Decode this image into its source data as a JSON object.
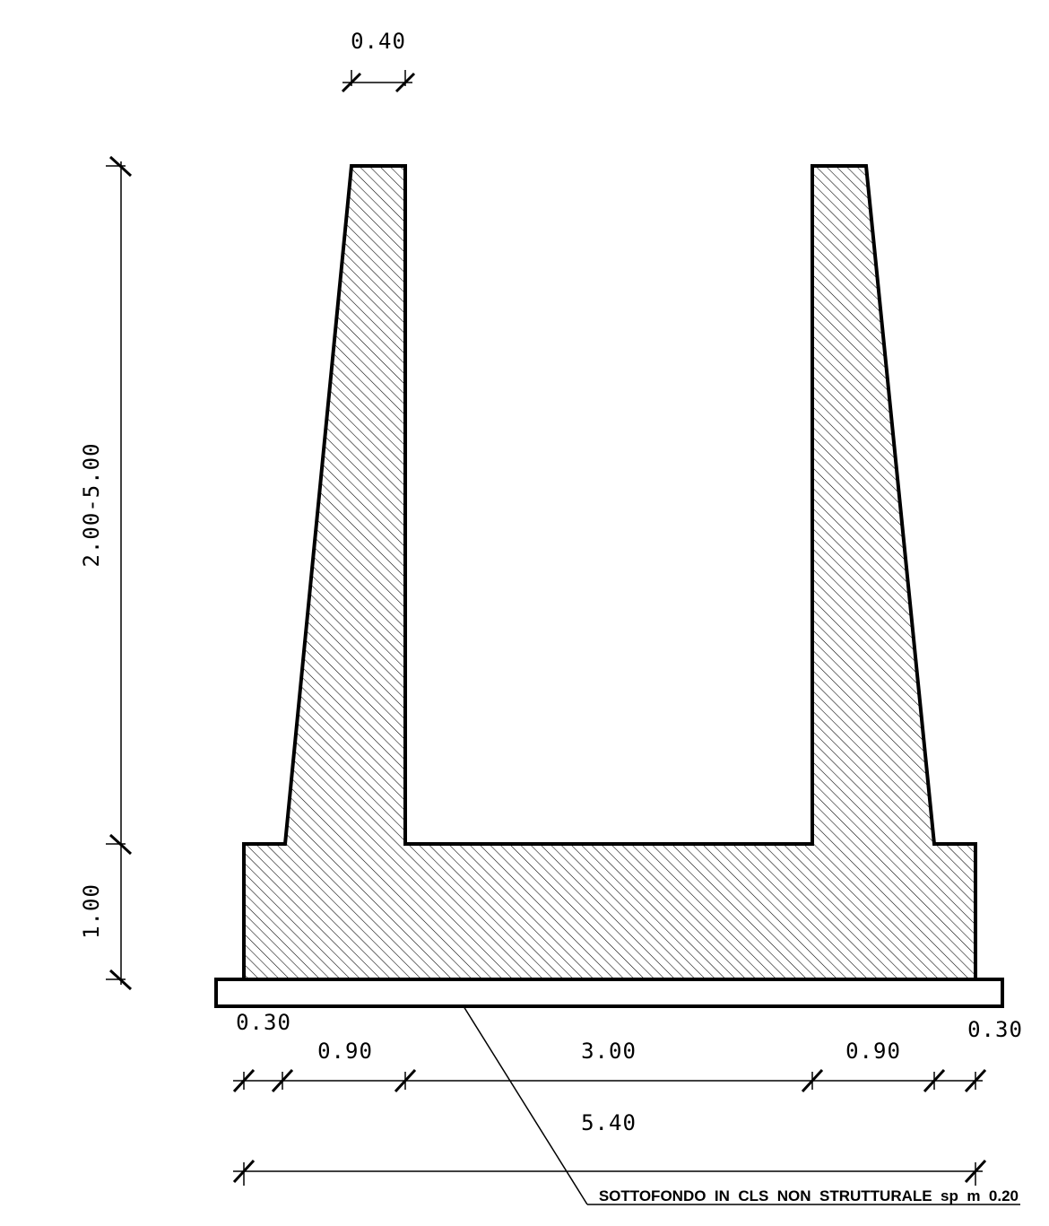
{
  "dimensions": {
    "top_width": "0.40",
    "wall_height": "2.00-5.00",
    "base_height": "1.00",
    "left_overhang": "0.30",
    "right_overhang": "0.30",
    "left_taper": "0.90",
    "inner_span": "3.00",
    "right_taper": "0.90",
    "total_width": "5.40"
  },
  "note": {
    "subbase_label": "SOTTOFONDO  IN  CLS  NON  STRUTTURALE  sp  m  0.20"
  },
  "colors": {
    "line": "#000000",
    "hatch": "#000000",
    "background": "#ffffff"
  }
}
